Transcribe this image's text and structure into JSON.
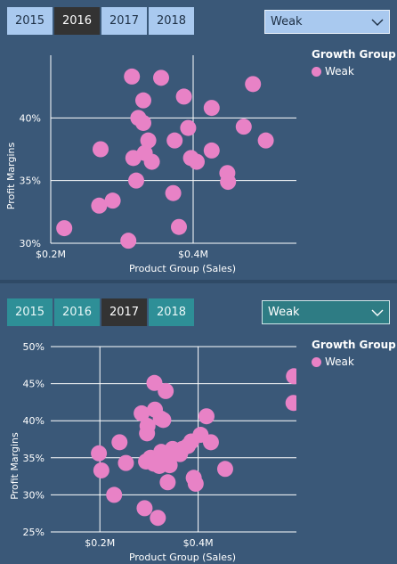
{
  "visual_top": {
    "tabs": [
      "2015",
      "2016",
      "2017",
      "2018"
    ],
    "active_tab": "2016",
    "dropdown_value": "Weak",
    "legend_title": "Growth Group",
    "legend_items": [
      "Weak"
    ],
    "colors": {
      "tab": "#a9c9ef",
      "active_tab": "#333333",
      "point": "#e882c6"
    }
  },
  "visual_bottom": {
    "tabs": [
      "2015",
      "2016",
      "2017",
      "2018"
    ],
    "active_tab": "2017",
    "dropdown_value": "Weak",
    "legend_title": "Growth Group",
    "legend_items": [
      "Weak"
    ],
    "colors": {
      "tab": "#2e8f97",
      "active_tab": "#333333",
      "point": "#e882c6"
    }
  },
  "chart_data": [
    {
      "type": "scatter",
      "xlabel": "Product Group (Sales)",
      "ylabel": "Profit Margins",
      "x_unit": "$M",
      "y_unit": "%",
      "xlim": [
        0.2,
        0.545
      ],
      "ylim": [
        30,
        45
      ],
      "x_ticks": [
        0.2,
        0.4
      ],
      "x_tick_labels": [
        "$0.2M",
        "$0.4M"
      ],
      "y_ticks": [
        30,
        35,
        40
      ],
      "y_tick_labels": [
        "30%",
        "35%",
        "40%"
      ],
      "grid": true,
      "legend": {
        "title": "Growth Group",
        "position": "right",
        "items": [
          "Weak"
        ]
      },
      "series": [
        {
          "name": "Weak",
          "color": "#e882c6",
          "points": [
            [
              0.219,
              31.2
            ],
            [
              0.268,
              33.0
            ],
            [
              0.287,
              33.4
            ],
            [
              0.27,
              37.5
            ],
            [
              0.309,
              30.2
            ],
            [
              0.32,
              35.0
            ],
            [
              0.316,
              36.8
            ],
            [
              0.332,
              37.2
            ],
            [
              0.342,
              36.5
            ],
            [
              0.323,
              40.0
            ],
            [
              0.33,
              39.6
            ],
            [
              0.33,
              41.4
            ],
            [
              0.337,
              38.2
            ],
            [
              0.314,
              43.3
            ],
            [
              0.355,
              43.2
            ],
            [
              0.372,
              34.0
            ],
            [
              0.374,
              38.2
            ],
            [
              0.38,
              31.3
            ],
            [
              0.387,
              41.7
            ],
            [
              0.393,
              39.2
            ],
            [
              0.397,
              36.8
            ],
            [
              0.405,
              36.5
            ],
            [
              0.426,
              40.8
            ],
            [
              0.426,
              37.4
            ],
            [
              0.448,
              35.6
            ],
            [
              0.449,
              34.9
            ],
            [
              0.471,
              39.3
            ],
            [
              0.484,
              42.7
            ],
            [
              0.502,
              38.2
            ]
          ]
        }
      ]
    },
    {
      "type": "scatter",
      "xlabel": "Product Group (Sales)",
      "ylabel": "Profit Margins",
      "x_unit": "$M",
      "y_unit": "%",
      "xlim": [
        0.1,
        0.6
      ],
      "ylim": [
        25,
        50
      ],
      "x_ticks": [
        0.2,
        0.4
      ],
      "x_tick_labels": [
        "$0.2M",
        "$0.4M"
      ],
      "y_ticks": [
        25,
        30,
        35,
        40,
        45,
        50
      ],
      "y_tick_labels": [
        "25%",
        "30%",
        "35%",
        "40%",
        "45%",
        "50%"
      ],
      "grid": true,
      "legend": {
        "title": "Growth Group",
        "position": "right",
        "items": [
          "Weak"
        ]
      },
      "series": [
        {
          "name": "Weak",
          "color": "#e882c6",
          "points": [
            [
              0.198,
              35.6
            ],
            [
              0.203,
              33.3
            ],
            [
              0.229,
              30.0
            ],
            [
              0.24,
              37.1
            ],
            [
              0.253,
              34.3
            ],
            [
              0.285,
              41.0
            ],
            [
              0.291,
              28.2
            ],
            [
              0.294,
              34.5
            ],
            [
              0.296,
              38.3
            ],
            [
              0.297,
              39.3
            ],
            [
              0.303,
              35.0
            ],
            [
              0.31,
              34.2
            ],
            [
              0.311,
              45.1
            ],
            [
              0.312,
              41.5
            ],
            [
              0.318,
              26.9
            ],
            [
              0.321,
              33.9
            ],
            [
              0.324,
              40.3
            ],
            [
              0.325,
              35.8
            ],
            [
              0.329,
              40.1
            ],
            [
              0.331,
              34.8
            ],
            [
              0.334,
              44.0
            ],
            [
              0.338,
              31.7
            ],
            [
              0.342,
              34.0
            ],
            [
              0.348,
              36.2
            ],
            [
              0.358,
              35.6
            ],
            [
              0.363,
              35.5
            ],
            [
              0.368,
              36.2
            ],
            [
              0.379,
              36.6
            ],
            [
              0.386,
              37.2
            ],
            [
              0.391,
              32.3
            ],
            [
              0.395,
              31.5
            ],
            [
              0.405,
              38.1
            ],
            [
              0.417,
              40.6
            ],
            [
              0.426,
              37.1
            ],
            [
              0.455,
              33.5
            ],
            [
              0.595,
              46.0
            ],
            [
              0.594,
              42.4
            ]
          ]
        }
      ]
    }
  ]
}
